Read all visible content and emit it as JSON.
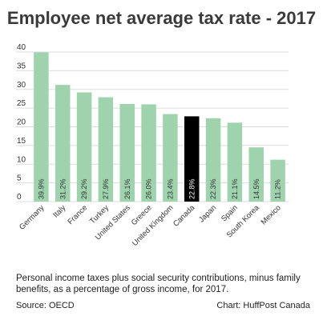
{
  "chart_data": {
    "type": "bar",
    "title": "Employee net average tax rate - 2017",
    "categories": [
      "Germany",
      "Italy",
      "France",
      "Turkey",
      "United States",
      "Greece",
      "United Kingdom",
      "Canada",
      "Japan",
      "Spain",
      "South Korea",
      "Mexico"
    ],
    "values": [
      39.9,
      31.2,
      29.2,
      27.9,
      26.1,
      26.0,
      23.4,
      22.8,
      22.3,
      21.1,
      14.5,
      11.2
    ],
    "value_labels": [
      "39.9%",
      "31.2%",
      "29.2%",
      "27.9%",
      "26.1%",
      "26.0%",
      "23.4%",
      "22.8%",
      "22.3%",
      "21.1%",
      "14.5%",
      "11.2%"
    ],
    "yticks": [
      "0",
      "5",
      "10",
      "15",
      "20",
      "25",
      "30",
      "35",
      "40"
    ],
    "ylim": [
      0,
      40
    ],
    "xlabel": "",
    "ylabel": "",
    "grid": true,
    "highlight_category": "Canada",
    "colors": {
      "bar": "#9fd3ad",
      "highlight": "#000000",
      "grid": "#dddddd"
    }
  },
  "caption": "Personal income taxes plus social security contributions, minus family benefits, as a percentage of gross income, for 2017.",
  "source": "Source: OECD",
  "credit": "Chart: HuffPost Canada"
}
